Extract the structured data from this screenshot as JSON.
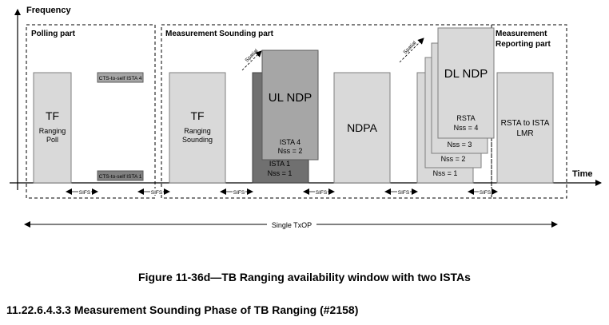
{
  "axes": {
    "y_label": "Frequency",
    "x_label": "Time"
  },
  "parts": {
    "polling": "Polling part",
    "sounding": "Measurement Sounding part",
    "reporting_line1": "Measurement",
    "reporting_line2": "Reporting part"
  },
  "frames": {
    "tf_poll": {
      "title": "TF",
      "line1": "Ranging",
      "line2": "Poll"
    },
    "cts_top": "CTS-to-self ISTA 4",
    "cts_bottom": "CTS-to-self ISTA 1",
    "tf_sound": {
      "title": "TF",
      "line1": "Ranging",
      "line2": "Sounding"
    },
    "ul_ndp": {
      "title": "UL NDP",
      "ista4": "ISTA 4",
      "nss2": "Nss = 2",
      "ista1": "ISTA 1",
      "nss1": "Nss = 1"
    },
    "ndpa": "NDPA",
    "dl_ndp": {
      "title": "DL NDP",
      "rsta": "RSTA",
      "nss4": "Nss = 4",
      "nss3": "Nss = 3",
      "nss2": "Nss = 2",
      "nss1": "Nss = 1"
    },
    "lmr": {
      "line1": "RSTA to ISTA",
      "line2": "LMR"
    }
  },
  "spatial": "Spatial",
  "sifs": "SIFS",
  "txop": "Single TxOP",
  "caption": "Figure 11-36d—TB Ranging availability window with two ISTAs",
  "section_heading": "11.22.6.4.3.3 Measurement Sounding Phase of TB Ranging (#2158)",
  "colors": {
    "light_frame": "#d9d9d9",
    "mid_frame": "#a6a6a6",
    "dark_frame": "#808080",
    "darkest_frame": "#707070"
  }
}
